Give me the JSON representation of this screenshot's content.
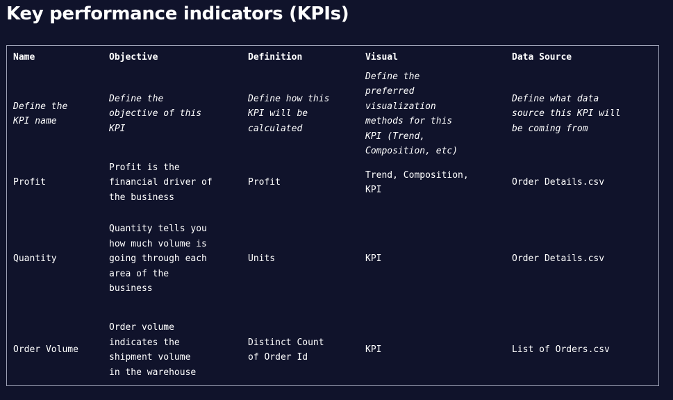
{
  "page": {
    "title": "Key performance indicators (KPIs)"
  },
  "table": {
    "headers": [
      "Name",
      "Objective",
      "Definition",
      "Visual",
      "Data Source"
    ],
    "rows": [
      {
        "name": "Define the KPI name",
        "objective": "Define the objective of this KPI",
        "definition": "Define how this KPI will be calculated",
        "visual": "Define the preferred visualization methods for this KPI (Trend, Composition, etc)",
        "data_source": "Define what data source this KPI will be coming from"
      },
      {
        "name": "Profit",
        "objective": "Profit is the financial driver of the business",
        "definition": "Profit",
        "visual": "Trend, Composition, KPI",
        "data_source": "Order Details.csv"
      },
      {
        "name": "Quantity",
        "objective": "Quantity tells you how much volume is going through each area of the business",
        "definition": "Units",
        "visual": "KPI",
        "data_source": "Order Details.csv"
      },
      {
        "name": "Order Volume",
        "objective": "Order volume indicates the shipment volume in the warehouse",
        "definition": "Distinct Count of Order Id",
        "visual": "KPI",
        "data_source": "List of Orders.csv"
      }
    ]
  },
  "colors": {
    "background": "#10132b",
    "text": "#ffffff",
    "border": "#9ea2b6"
  }
}
